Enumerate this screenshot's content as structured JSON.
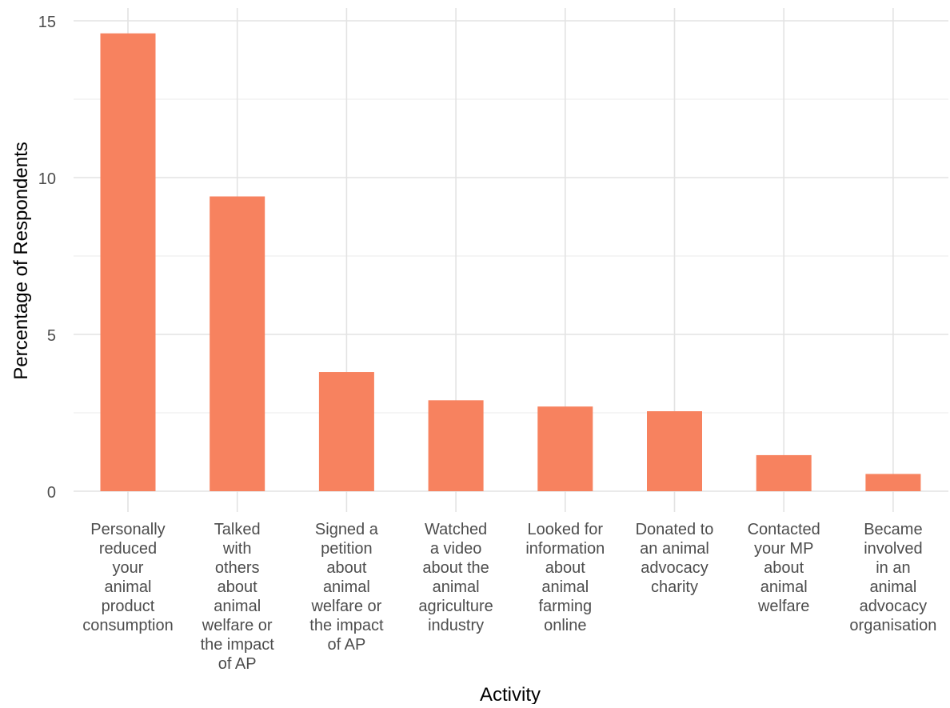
{
  "chart_data": {
    "type": "bar",
    "title": "",
    "xlabel": "Activity",
    "ylabel": "Percentage of Respondents",
    "ylim": [
      0,
      15
    ],
    "yticks": [
      0,
      5,
      10,
      15
    ],
    "grid": true,
    "bar_color": "#f7825f",
    "categories": [
      "Personally reduced your animal product consumption",
      "Talked with others about animal welfare or the impact of AP",
      "Signed a petition about animal welfare or the impact of AP",
      "Watched a video about the animal agriculture industry",
      "Looked for information about animal farming online",
      "Donated to an animal advocacy charity",
      "Contacted your MP about animal welfare",
      "Became involved in an animal advocacy organisation"
    ],
    "category_label_lines": [
      [
        "Personally",
        "reduced",
        "your",
        "animal",
        "product",
        "consumption"
      ],
      [
        "Talked",
        "with",
        "others",
        "about",
        "animal",
        "welfare or",
        "the impact",
        "of AP"
      ],
      [
        "Signed a",
        "petition",
        "about",
        "animal",
        "welfare or",
        "the impact",
        "of AP"
      ],
      [
        "Watched",
        "a video",
        "about the",
        "animal",
        "agriculture",
        "industry"
      ],
      [
        "Looked for",
        "information",
        "about",
        "animal",
        "farming",
        "online"
      ],
      [
        "Donated to",
        "an animal",
        "advocacy",
        "charity"
      ],
      [
        "Contacted",
        "your MP",
        "about",
        "animal",
        "welfare"
      ],
      [
        "Became",
        "involved",
        "in an",
        "animal",
        "advocacy",
        "organisation"
      ]
    ],
    "values": [
      14.6,
      9.4,
      3.8,
      2.9,
      2.7,
      2.55,
      1.15,
      0.55
    ]
  }
}
